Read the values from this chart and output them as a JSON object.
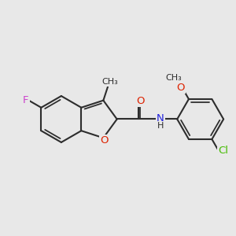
{
  "background_color": "#e8e8e8",
  "bond_color": "#2d2d2d",
  "F_color": "#cc44cc",
  "O_color": "#dd2200",
  "N_color": "#2222dd",
  "Cl_color": "#44bb00",
  "line_width": 1.5,
  "fig_size": [
    3.0,
    3.0
  ],
  "dpi": 100,
  "xlim": [
    0,
    10
  ],
  "ylim": [
    0,
    10
  ]
}
